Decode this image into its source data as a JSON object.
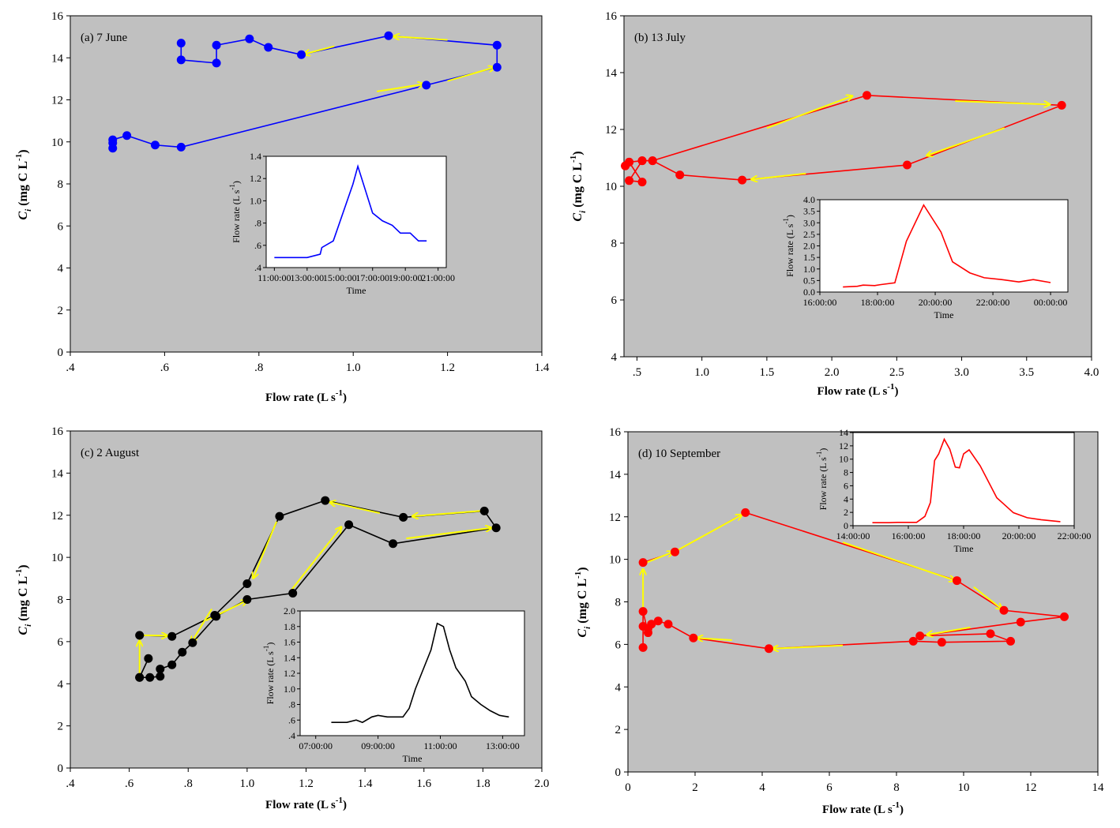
{
  "colors": {
    "panel_bg": "#c0c0c0",
    "arrow": "#ffff00",
    "inset_bg": "#ffffff"
  },
  "chart_data": [
    {
      "type": "line",
      "panel_label": "(a) 7 June",
      "xlabel": "Flow rate (L s",
      "xlabel_sup": "-1",
      "xlabel_end": ")",
      "ylabel": "C",
      "ylabel_sub": "i",
      "ylabel_unit": " (mg C L",
      "ylabel_sup": "-1",
      "ylabel_end": ")",
      "xlim": [
        0.4,
        1.4
      ],
      "ylim": [
        0,
        16
      ],
      "xticks": [
        0.4,
        0.6,
        0.8,
        1.0,
        1.2,
        1.4
      ],
      "xtick_labels": [
        ".4",
        ".6",
        ".8",
        "1.0",
        "1.2",
        "1.4"
      ],
      "yticks": [
        0,
        2,
        4,
        6,
        8,
        10,
        12,
        14,
        16
      ],
      "ytick_labels": [
        "0",
        "2",
        "4",
        "6",
        "8",
        "10",
        "12",
        "14",
        "16"
      ],
      "color": "#0000ff",
      "x": [
        0.49,
        0.49,
        0.49,
        0.52,
        0.58,
        0.635,
        1.155,
        1.305,
        1.305,
        1.075,
        0.89,
        0.82,
        0.78,
        0.71,
        0.71,
        0.635,
        0.635
      ],
      "y": [
        9.7,
        9.95,
        10.1,
        10.3,
        9.85,
        9.75,
        12.7,
        13.55,
        14.6,
        15.05,
        14.15,
        14.5,
        14.9,
        14.6,
        13.75,
        13.9,
        14.7
      ],
      "arrows": [
        [
          1.05,
          12.4,
          1.15,
          12.75
        ],
        [
          1.2,
          12.9,
          1.3,
          13.55
        ],
        [
          1.2,
          14.85,
          1.085,
          15.02
        ],
        [
          0.96,
          14.55,
          0.895,
          14.17
        ]
      ],
      "inset": {
        "xlabel": "Time",
        "ylabel": "Flow rate (L s",
        "ylabel_sup": "-1",
        "ylabel_end": ")",
        "xlim": [
          10.5,
          21.5
        ],
        "ylim": [
          0.4,
          1.4
        ],
        "xticks": [
          11,
          13,
          15,
          17,
          19,
          21
        ],
        "xtick_labels": [
          "11:00:00",
          "13:00:00",
          "15:00:00",
          "17:00:00",
          "19:00:00",
          "21:00:00"
        ],
        "yticks": [
          0.4,
          0.6,
          0.8,
          1.0,
          1.2,
          1.4
        ],
        "ytick_labels": [
          ".4",
          ".6",
          ".8",
          "1.0",
          "1.2",
          "1.4"
        ],
        "x": [
          11.0,
          12.0,
          13.0,
          13.8,
          13.9,
          14.6,
          15.8,
          16.1,
          17.0,
          17.6,
          18.2,
          18.7,
          19.3,
          19.8,
          20.3
        ],
        "y": [
          0.49,
          0.49,
          0.49,
          0.52,
          0.58,
          0.64,
          1.15,
          1.31,
          0.89,
          0.82,
          0.78,
          0.71,
          0.71,
          0.64,
          0.64
        ]
      }
    },
    {
      "type": "line",
      "panel_label": "(b) 13 July",
      "xlabel": "Flow rate (L s",
      "xlabel_sup": "-1",
      "xlabel_end": ")",
      "ylabel": "C",
      "ylabel_sub": "i",
      "ylabel_unit": " (mg C L",
      "ylabel_sup": "-1",
      "ylabel_end": ")",
      "xlim": [
        0.4,
        4.0
      ],
      "ylim": [
        4,
        16
      ],
      "xticks": [
        0.5,
        1.0,
        1.5,
        2.0,
        2.5,
        3.0,
        3.5,
        4.0
      ],
      "xtick_labels": [
        ".5",
        "1.0",
        "1.5",
        "2.0",
        "2.5",
        "3.0",
        "3.5",
        "4.0"
      ],
      "yticks": [
        4,
        6,
        8,
        10,
        12,
        14,
        16
      ],
      "ytick_labels": [
        "4",
        "6",
        "8",
        "10",
        "12",
        "14",
        "16"
      ],
      "color": "#ff0000",
      "x": [
        0.41,
        0.44,
        0.54,
        0.44,
        0.54,
        0.62,
        2.27,
        3.77,
        2.58,
        1.31,
        0.83,
        0.62,
        0.54,
        0.44,
        0.41
      ],
      "y": [
        10.72,
        10.85,
        10.15,
        10.2,
        10.9,
        10.9,
        13.2,
        12.85,
        10.75,
        10.22,
        10.4,
        10.9,
        10.9,
        10.85,
        10.72
      ],
      "arrows": [
        [
          1.5,
          12.05,
          2.16,
          13.18
        ],
        [
          2.95,
          13.0,
          3.68,
          12.88
        ],
        [
          3.33,
          12.05,
          2.73,
          11.08
        ],
        [
          1.8,
          10.45,
          1.38,
          10.24
        ]
      ],
      "inset": {
        "xlabel": "Time",
        "ylabel": "Flow rate (L s",
        "ylabel_sup": "-1",
        "ylabel_end": ")",
        "xlim": [
          16.0,
          24.6
        ],
        "ylim": [
          0,
          4.0
        ],
        "xticks": [
          16,
          18,
          20,
          22,
          24
        ],
        "xtick_labels": [
          "16:00:00",
          "18:00:00",
          "20:00:00",
          "22:00:00",
          "00:00:00"
        ],
        "yticks": [
          0,
          0.5,
          1.0,
          1.5,
          2.0,
          2.5,
          3.0,
          3.5,
          4.0
        ],
        "ytick_labels": [
          "0.0",
          "0.5",
          "1.0",
          "1.5",
          "2.0",
          "2.5",
          "3.0",
          "3.5",
          "4.0"
        ],
        "x": [
          16.8,
          17.3,
          17.5,
          17.9,
          18.1,
          18.6,
          19.0,
          19.6,
          20.2,
          20.6,
          21.2,
          21.7,
          22.3,
          22.9,
          23.4,
          24.0
        ],
        "y": [
          0.22,
          0.25,
          0.3,
          0.28,
          0.32,
          0.4,
          2.2,
          3.77,
          2.6,
          1.31,
          0.83,
          0.62,
          0.54,
          0.44,
          0.54,
          0.41
        ]
      }
    },
    {
      "type": "line",
      "panel_label": "(c) 2 August",
      "xlabel": "Flow rate (L s",
      "xlabel_sup": "-1",
      "xlabel_end": ")",
      "ylabel": "C",
      "ylabel_sub": "i",
      "ylabel_unit": " (mg C L",
      "ylabel_sup": "-1",
      "ylabel_end": ")",
      "xlim": [
        0.4,
        2.0
      ],
      "ylim": [
        0,
        16
      ],
      "xticks": [
        0.4,
        0.6,
        0.8,
        1.0,
        1.2,
        1.4,
        1.6,
        1.8,
        2.0
      ],
      "xtick_labels": [
        ".4",
        ".6",
        ".8",
        "1.0",
        "1.2",
        "1.4",
        "1.6",
        "1.8",
        "2.0"
      ],
      "yticks": [
        0,
        2,
        4,
        6,
        8,
        10,
        12,
        14,
        16
      ],
      "ytick_labels": [
        "0",
        "2",
        "4",
        "6",
        "8",
        "10",
        "12",
        "14",
        "16"
      ],
      "color": "#000000",
      "x": [
        0.635,
        0.67,
        0.705,
        0.705,
        0.745,
        0.78,
        0.815,
        0.895,
        1.0,
        1.155,
        1.345,
        1.495,
        1.845,
        1.805,
        1.53,
        1.265,
        1.11,
        1.0,
        0.89,
        0.745,
        0.635,
        0.635,
        0.665
      ],
      "y": [
        4.3,
        4.3,
        4.35,
        4.7,
        4.9,
        5.5,
        5.95,
        7.2,
        8.0,
        8.3,
        11.55,
        10.65,
        11.4,
        12.2,
        11.9,
        12.7,
        11.95,
        8.75,
        7.25,
        6.25,
        6.3,
        4.3,
        5.2
      ],
      "arrows": [
        [
          1.15,
          8.45,
          1.32,
          11.45
        ],
        [
          1.54,
          10.9,
          1.83,
          11.4
        ],
        [
          1.79,
          12.2,
          1.56,
          11.95
        ],
        [
          1.45,
          12.1,
          1.28,
          12.62
        ],
        [
          1.1,
          11.7,
          1.02,
          9.0
        ],
        [
          0.88,
          7.55,
          0.81,
          5.95
        ],
        [
          0.86,
          7.0,
          1.0,
          7.95
        ],
        [
          0.635,
          4.5,
          0.635,
          6.05
        ],
        [
          0.65,
          6.3,
          0.73,
          6.28
        ]
      ],
      "inset": {
        "xlabel": "Time",
        "ylabel": "Flow rate (L s",
        "ylabel_sup": "-1",
        "ylabel_end": ")",
        "xlim": [
          6.5,
          13.7
        ],
        "ylim": [
          0.4,
          2.0
        ],
        "xticks": [
          7,
          9,
          11,
          13
        ],
        "xtick_labels": [
          "07:00:00",
          "09:00:00",
          "11:00:00",
          "13:00:00"
        ],
        "yticks": [
          0.4,
          0.6,
          0.8,
          1.0,
          1.2,
          1.4,
          1.6,
          1.8,
          2.0
        ],
        "ytick_labels": [
          ".4",
          ".6",
          ".8",
          "1.0",
          "1.2",
          "1.4",
          "1.6",
          "1.8",
          "2.0"
        ],
        "x": [
          7.5,
          8.0,
          8.3,
          8.5,
          8.8,
          9.0,
          9.3,
          9.8,
          10.0,
          10.2,
          10.5,
          10.7,
          10.9,
          11.1,
          11.3,
          11.5,
          11.8,
          12.0,
          12.3,
          12.6,
          12.9,
          13.2
        ],
        "y": [
          0.57,
          0.57,
          0.6,
          0.57,
          0.64,
          0.66,
          0.64,
          0.64,
          0.75,
          1.0,
          1.3,
          1.5,
          1.84,
          1.8,
          1.5,
          1.27,
          1.1,
          0.9,
          0.8,
          0.72,
          0.66,
          0.64
        ]
      }
    },
    {
      "type": "line",
      "panel_label": "(d) 10 September",
      "xlabel": "Flow rate (L s",
      "xlabel_sup": "-1",
      "xlabel_end": ")",
      "ylabel": "C",
      "ylabel_sub": "i",
      "ylabel_unit": " (mg C L",
      "ylabel_sup": "-1",
      "ylabel_end": ")",
      "xlim": [
        0,
        14
      ],
      "ylim": [
        0,
        16
      ],
      "xticks": [
        0,
        2,
        4,
        6,
        8,
        10,
        12,
        14
      ],
      "xtick_labels": [
        "0",
        "2",
        "4",
        "6",
        "8",
        "10",
        "12",
        "14"
      ],
      "yticks": [
        0,
        2,
        4,
        6,
        8,
        10,
        12,
        14,
        16
      ],
      "ytick_labels": [
        "0",
        "2",
        "4",
        "6",
        "8",
        "10",
        "12",
        "14",
        "16"
      ],
      "color": "#ff0000",
      "x": [
        0.45,
        0.45,
        0.45,
        0.6,
        0.6,
        0.7,
        0.9,
        1.2,
        1.95,
        4.2,
        8.5,
        9.35,
        11.4,
        10.8,
        8.7,
        11.7,
        13.0,
        11.2,
        9.8,
        3.5,
        1.4,
        0.45
      ],
      "y": [
        5.85,
        6.85,
        7.55,
        6.55,
        6.75,
        6.95,
        7.1,
        6.95,
        6.3,
        5.8,
        6.15,
        6.1,
        6.15,
        6.5,
        6.4,
        7.05,
        7.3,
        7.6,
        9.0,
        12.2,
        10.35,
        9.85
      ],
      "arrows": [
        [
          0.45,
          7.6,
          0.45,
          9.55
        ],
        [
          0.55,
          9.85,
          1.35,
          10.35
        ],
        [
          1.5,
          10.45,
          3.4,
          12.1
        ],
        [
          6.4,
          10.8,
          9.75,
          9.0
        ],
        [
          10.3,
          8.7,
          11.15,
          7.65
        ],
        [
          10.2,
          6.8,
          8.9,
          6.45
        ],
        [
          6.4,
          5.95,
          4.3,
          5.8
        ],
        [
          3.1,
          6.2,
          2.05,
          6.3
        ]
      ],
      "inset": {
        "xlabel": "Time",
        "ylabel": "Flow rate (L s",
        "ylabel_sup": "-1",
        "ylabel_end": ")",
        "xlim": [
          14.0,
          22.0
        ],
        "ylim": [
          0,
          14
        ],
        "xticks": [
          14,
          16,
          18,
          20,
          22
        ],
        "xtick_labels": [
          "14:00:00",
          "16:00:00",
          "18:00:00",
          "20:00:00",
          "22:00:00"
        ],
        "yticks": [
          0,
          2,
          4,
          6,
          8,
          10,
          12,
          14
        ],
        "ytick_labels": [
          "0",
          "2",
          "4",
          "6",
          "8",
          "10",
          "12",
          "14"
        ],
        "x": [
          14.7,
          15.3,
          15.6,
          16.0,
          16.3,
          16.6,
          16.8,
          16.95,
          17.1,
          17.3,
          17.5,
          17.7,
          17.85,
          18.0,
          18.2,
          18.6,
          19.2,
          19.8,
          20.3,
          20.8,
          21.5
        ],
        "y": [
          0.45,
          0.45,
          0.5,
          0.5,
          0.5,
          1.4,
          3.5,
          9.8,
          10.8,
          13.0,
          11.5,
          8.8,
          8.7,
          10.8,
          11.4,
          9.0,
          4.2,
          1.95,
          1.2,
          0.9,
          0.6
        ]
      }
    }
  ]
}
